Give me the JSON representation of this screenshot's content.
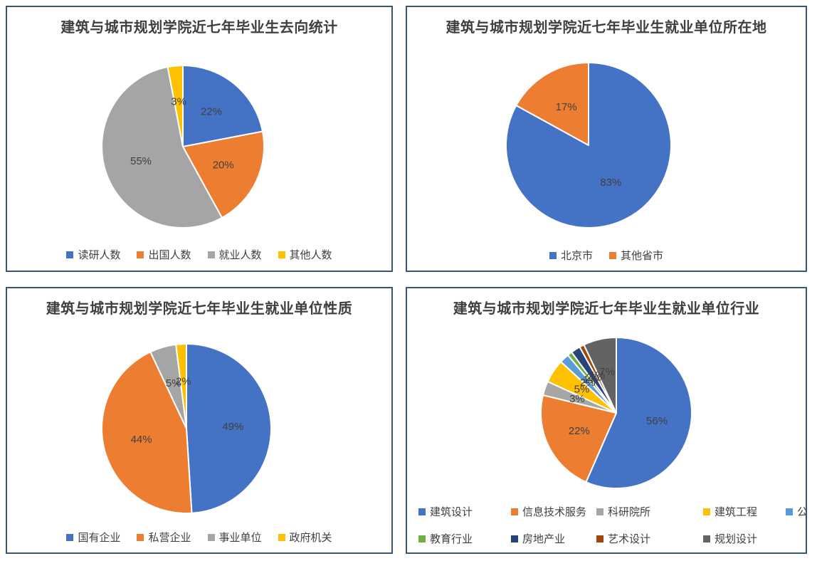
{
  "styles": {
    "panel_border_color": "#36557A",
    "title_color": "#3F3F3F",
    "label_color": "#404040",
    "background_color": "#FFFFFF"
  },
  "chart_data": [
    {
      "type": "pie",
      "title": "建筑与城市规划学院近七年毕业生去向统计",
      "legend_position": "bottom",
      "start_angle": "12-oclock",
      "direction": "clockwise",
      "labels": [
        "读研人数",
        "出国人数",
        "就业人数",
        "其他人数"
      ],
      "values": [
        22,
        20,
        55,
        3
      ],
      "value_labels": [
        "22%",
        "20%",
        "55%",
        "3%"
      ],
      "colors": [
        "#4472C4",
        "#ED7D31",
        "#A5A5A5",
        "#FFC000"
      ]
    },
    {
      "type": "pie",
      "title": "建筑与城市规划学院近七年毕业生就业单位所在地",
      "legend_position": "bottom",
      "start_angle": "12-oclock",
      "direction": "clockwise",
      "labels": [
        "北京市",
        "其他省市"
      ],
      "values": [
        83,
        17
      ],
      "value_labels": [
        "83%",
        "17%"
      ],
      "colors": [
        "#4472C4",
        "#ED7D31"
      ]
    },
    {
      "type": "pie",
      "title": "建筑与城市规划学院近七年毕业生就业单位性质",
      "legend_position": "bottom",
      "start_angle": "12-oclock",
      "direction": "clockwise",
      "labels": [
        "国有企业",
        "私营企业",
        "事业单位",
        "政府机关"
      ],
      "values": [
        49,
        44,
        5,
        2
      ],
      "value_labels": [
        "49%",
        "44%",
        "5%",
        "2%"
      ],
      "colors": [
        "#4472C4",
        "#ED7D31",
        "#A5A5A5",
        "#FFC000"
      ]
    },
    {
      "type": "pie",
      "title": "建筑与城市规划学院近七年毕业生就业单位行业",
      "legend_position": "bottom-two-rows",
      "start_angle": "12-oclock",
      "direction": "clockwise",
      "labels": [
        "建筑设计",
        "信息技术服务",
        "科研院所",
        "建筑工程",
        "公务员",
        "教育行业",
        "房地产业",
        "艺术设计",
        "规划设计"
      ],
      "values": [
        56,
        22,
        3,
        5,
        2,
        1,
        2,
        1,
        7
      ],
      "value_labels": [
        "56%",
        "22%",
        "3%",
        "5%",
        "2%",
        "1%",
        "2%",
        "1%",
        "7%"
      ],
      "colors": [
        "#4472C4",
        "#ED7D31",
        "#A5A5A5",
        "#FFC000",
        "#5B9BD5",
        "#70AD47",
        "#264478",
        "#9E480E",
        "#636363"
      ]
    }
  ]
}
